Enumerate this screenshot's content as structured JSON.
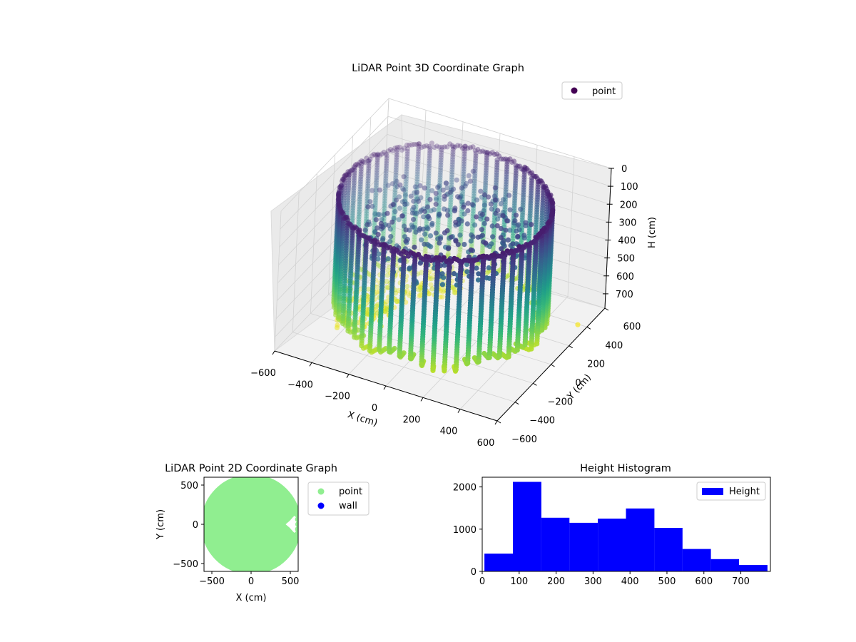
{
  "chart_data": [
    {
      "type": "scatter3d",
      "title": "LiDAR Point 3D Coordinate Graph",
      "xlabel": "X (cm)",
      "ylabel": "Y (cm)",
      "zlabel": "H (cm)",
      "xlim": [
        -600,
        600
      ],
      "ylim": [
        -600,
        600
      ],
      "zlim": [
        0,
        780
      ],
      "z_inverted": true,
      "x_ticks": [
        "−600",
        "−400",
        "−200",
        "0",
        "200",
        "400",
        "600"
      ],
      "y_ticks": [
        "−600",
        "−400",
        "−200",
        "0",
        "200",
        "400",
        "600"
      ],
      "z_ticks": [
        "0",
        "100",
        "200",
        "300",
        "400",
        "500",
        "600",
        "700"
      ],
      "colormap": "viridis",
      "legend": {
        "label": "point",
        "color": "#440154",
        "placement": "top-right"
      },
      "description_of_cloud": {
        "wall_radius_cm": 520,
        "wall_height_cm": [
          80,
          680
        ],
        "floor_height_cm": 720
      }
    },
    {
      "type": "scatter",
      "title": "LiDAR Point 2D Coordinate Graph",
      "xlabel": "X (cm)",
      "ylabel": "Y (cm)",
      "xlim": [
        -600,
        600
      ],
      "ylim": [
        -600,
        600
      ],
      "x_ticks": [
        "−500",
        "0",
        "500"
      ],
      "y_ticks": [
        "−500",
        "0",
        "500"
      ],
      "series": [
        {
          "name": "point",
          "color": "#90ee90"
        },
        {
          "name": "wall",
          "color": "#0000ff"
        }
      ],
      "legend_placement": "outside-right"
    },
    {
      "type": "bar",
      "title": "Height Histogram",
      "xlabel": "",
      "ylabel": "",
      "bin_edges": [
        6,
        83,
        160,
        236,
        313,
        389,
        466,
        542,
        619,
        695,
        772
      ],
      "values": [
        420,
        2120,
        1270,
        1150,
        1250,
        1490,
        1030,
        530,
        290,
        150
      ],
      "xlim": [
        0,
        780
      ],
      "ylim": [
        0,
        2230
      ],
      "x_ticks": [
        "0",
        "100",
        "200",
        "300",
        "400",
        "500",
        "600",
        "700"
      ],
      "y_ticks": [
        "0",
        "1000",
        "2000"
      ],
      "legend": {
        "label": "Height",
        "color": "#0000ff",
        "placement": "top-right"
      }
    }
  ]
}
